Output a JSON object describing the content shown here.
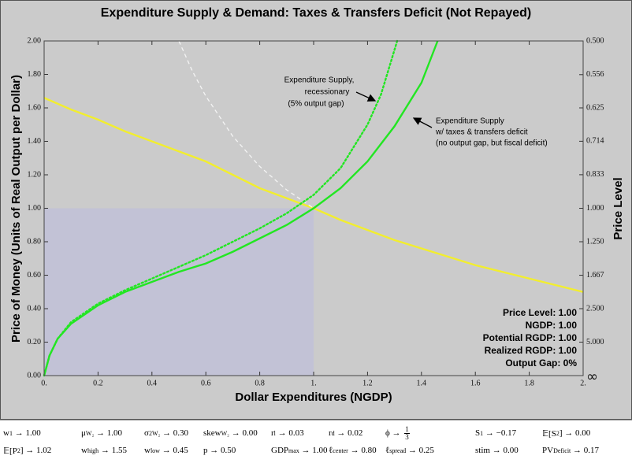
{
  "chart_data": {
    "type": "line",
    "title": "Expenditure Supply & Demand: Taxes & Transfers Deficit (Not Repayed)",
    "x_label": "Dollar Expenditures (NGDP)",
    "y_label": "Price of Money (Units of Real Output per Dollar)",
    "y2_label": "Price Level",
    "xlim": [
      0,
      2
    ],
    "ylim": [
      0,
      2
    ],
    "xticks": [
      {
        "value": 0,
        "label": "0."
      },
      0.2,
      0.4,
      0.6,
      0.8,
      {
        "value": 1,
        "label": "1."
      },
      1.2,
      1.4,
      1.6,
      1.8,
      {
        "value": 2,
        "label": "2."
      }
    ],
    "yticks": [
      {
        "value": 0,
        "label": "0.00"
      },
      {
        "value": 0.2,
        "label": "0.20"
      },
      {
        "value": 0.4,
        "label": "0.40"
      },
      {
        "value": 0.6,
        "label": "0.60"
      },
      {
        "value": 0.8,
        "label": "0.80"
      },
      {
        "value": 1,
        "label": "1.00"
      },
      {
        "value": 1.2,
        "label": "1.20"
      },
      {
        "value": 1.4,
        "label": "1.40"
      },
      {
        "value": 1.6,
        "label": "1.60"
      },
      {
        "value": 1.8,
        "label": "1.80"
      },
      {
        "value": 2,
        "label": "2.00"
      }
    ],
    "y2_scale": "reciprocal",
    "y2ticks": [
      {
        "value": null,
        "label": "∞"
      },
      {
        "value": 5,
        "label": "5.000"
      },
      {
        "value": 2.5,
        "label": "2.500"
      },
      {
        "value": 1.667,
        "label": "1.667"
      },
      {
        "value": 1.25,
        "label": "1.250"
      },
      {
        "value": 1,
        "label": "1.000"
      },
      {
        "value": 0.833,
        "label": "0.833"
      },
      {
        "value": 0.714,
        "label": "0.714"
      },
      {
        "value": 0.625,
        "label": "0.625"
      },
      {
        "value": 0.556,
        "label": "0.556"
      },
      {
        "value": 0.5,
        "label": "0.500"
      }
    ],
    "grid": false,
    "shaded_region": {
      "x": [
        0,
        1
      ],
      "y": [
        0,
        1
      ],
      "color": "#c2c2d6"
    },
    "series": [
      {
        "color": "#f2ee2e",
        "dash": "solid",
        "x": [
          0,
          0.1,
          0.2,
          0.3,
          0.4,
          0.5,
          0.6,
          0.7,
          0.8,
          0.9,
          1.0,
          1.1,
          1.2,
          1.3,
          1.4,
          1.5,
          1.6,
          1.7,
          1.8,
          1.9,
          2.0
        ],
        "values": [
          1.66,
          1.59,
          1.53,
          1.46,
          1.4,
          1.34,
          1.28,
          1.2,
          1.12,
          1.06,
          1.0,
          0.93,
          0.87,
          0.81,
          0.76,
          0.71,
          0.66,
          0.62,
          0.58,
          0.54,
          0.5
        ]
      },
      {
        "color": "#f4f4f4",
        "dash": "dashed",
        "x": [
          0.5,
          0.55,
          0.6,
          0.7,
          0.8,
          0.9,
          1.0
        ],
        "values": [
          2.0,
          1.82,
          1.67,
          1.43,
          1.25,
          1.11,
          1.0
        ]
      },
      {
        "color": "#22e622",
        "dash": "dotted",
        "x": [
          0,
          0.02,
          0.05,
          0.1,
          0.2,
          0.3,
          0.4,
          0.5,
          0.6,
          0.7,
          0.8,
          0.9,
          1.0,
          1.1,
          1.2,
          1.25,
          1.31
        ],
        "values": [
          0,
          0.12,
          0.22,
          0.32,
          0.43,
          0.51,
          0.58,
          0.65,
          0.72,
          0.8,
          0.88,
          0.97,
          1.08,
          1.24,
          1.5,
          1.68,
          2.0
        ]
      },
      {
        "color": "#22e622",
        "dash": "solid",
        "x": [
          0,
          0.02,
          0.05,
          0.1,
          0.2,
          0.3,
          0.4,
          0.5,
          0.6,
          0.7,
          0.8,
          0.9,
          1.0,
          1.1,
          1.2,
          1.3,
          1.4,
          1.46
        ],
        "values": [
          0,
          0.12,
          0.22,
          0.31,
          0.42,
          0.5,
          0.56,
          0.62,
          0.67,
          0.74,
          0.82,
          0.9,
          1.0,
          1.12,
          1.28,
          1.49,
          1.75,
          2.0
        ]
      }
    ],
    "annotations": [
      {
        "lines": [
          "Expenditure Supply,",
          "recessionary",
          "(5% output gap)"
        ]
      },
      {
        "lines": [
          "Expenditure Supply",
          "w/ taxes & transfers deficit",
          "(no output gap, but fiscal deficit)"
        ]
      }
    ],
    "info_box": [
      "Price Level: 1.00",
      "NGDP: 1.00",
      "Potential RGDP: 1.00",
      "Realized RGDP: 1.00",
      "Output Gap: 0%"
    ]
  },
  "parameters": [
    [
      [
        {
          "text": "w"
        },
        {
          "text": "1",
          "pos": "sub"
        },
        {
          "text": " → 1.00"
        }
      ],
      [
        {
          "text": "μ"
        },
        {
          "text": "W₂",
          "pos": "sub"
        },
        {
          "text": " → 1.00"
        }
      ],
      [
        {
          "text": "σ"
        },
        {
          "text": "2",
          "pos": "sup"
        },
        {
          "text": "W₂",
          "pos": "sub"
        },
        {
          "text": " → 0.30"
        }
      ],
      [
        {
          "text": "skew"
        },
        {
          "text": "W₂",
          "pos": "sub"
        },
        {
          "text": " → 0.00"
        }
      ],
      [
        {
          "text": "r"
        },
        {
          "text": "l",
          "pos": "sub"
        },
        {
          "text": " → 0.03"
        }
      ],
      [
        {
          "text": "r"
        },
        {
          "text": "d",
          "pos": "sub"
        },
        {
          "text": " → 0.02"
        }
      ],
      [
        {
          "text": "ϕ → "
        },
        {
          "text": "1",
          "pos": "num"
        },
        {
          "text": "3",
          "pos": "den"
        }
      ],
      [
        {
          "text": "S"
        },
        {
          "text": "1",
          "pos": "sub"
        },
        {
          "text": " → −0.17"
        }
      ],
      [
        {
          "text": "𝔼[S"
        },
        {
          "text": "2",
          "pos": "sub"
        },
        {
          "text": "] → 0.00"
        }
      ]
    ],
    [
      [
        {
          "text": "𝔼[P"
        },
        {
          "text": "2",
          "pos": "sub"
        },
        {
          "text": "] → 1.02"
        }
      ],
      [
        {
          "text": "w"
        },
        {
          "text": "high",
          "pos": "sub"
        },
        {
          "text": " → 1.55"
        }
      ],
      [
        {
          "text": "w"
        },
        {
          "text": "low",
          "pos": "sub"
        },
        {
          "text": " → 0.45"
        }
      ],
      [
        {
          "text": "p → 0.50"
        }
      ],
      [
        {
          "text": "GDP"
        },
        {
          "text": "max",
          "pos": "sub"
        },
        {
          "text": " → 1.00"
        }
      ],
      [
        {
          "text": "ℓ"
        },
        {
          "text": "center",
          "pos": "sub"
        },
        {
          "text": " → 0.80"
        }
      ],
      [
        {
          "text": "ℓ"
        },
        {
          "text": "spread",
          "pos": "sub"
        },
        {
          "text": " → 0.25"
        }
      ],
      [
        {
          "text": "stim → 0.00"
        }
      ],
      [
        {
          "text": "PV"
        },
        {
          "text": "Deficit",
          "pos": "sub"
        },
        {
          "text": " → 0.17"
        }
      ]
    ]
  ]
}
